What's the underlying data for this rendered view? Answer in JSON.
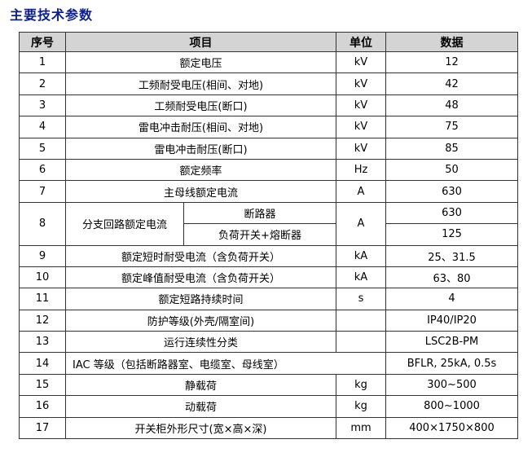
{
  "title": "主要技术参数",
  "headers": {
    "no": "序号",
    "item": "项目",
    "unit": "单位",
    "value": "数据"
  },
  "rows": [
    {
      "no": "1",
      "item": "额定电压",
      "unit": "kV",
      "value": "12"
    },
    {
      "no": "2",
      "item": "工频耐受电压(相间、对地)",
      "unit": "kV",
      "value": "42"
    },
    {
      "no": "3",
      "item": "工频耐受电压(断口)",
      "unit": "kV",
      "value": "48"
    },
    {
      "no": "4",
      "item": "雷电冲击耐压(相间、对地)",
      "unit": "kV",
      "value": "75"
    },
    {
      "no": "5",
      "item": "雷电冲击耐压(断口)",
      "unit": "kV",
      "value": "85"
    },
    {
      "no": "6",
      "item": "额定频率",
      "unit": "Hz",
      "value": "50"
    },
    {
      "no": "7",
      "item": "主母线额定电流",
      "unit": "A",
      "value": "630"
    }
  ],
  "row8": {
    "no": "8",
    "item": "分支回路额定电流",
    "sub1": "断路器",
    "sub2": "负荷开关+熔断器",
    "unit": "A",
    "value1": "630",
    "value2": "125"
  },
  "rows2": [
    {
      "no": "9",
      "item": "额定短时耐受电流（含负荷开关）",
      "unit": "kA",
      "value": "25、31.5"
    },
    {
      "no": "10",
      "item": "额定峰值耐受电流（含负荷开关）",
      "unit": "kA",
      "value": "63、80"
    },
    {
      "no": "11",
      "item": "额定短路持续时间",
      "unit": "s",
      "value": "4"
    },
    {
      "no": "12",
      "item": "防护等级(外壳/隔室间)",
      "unit": "",
      "value": "IP40/IP20"
    },
    {
      "no": "13",
      "item": "运行连续性分类",
      "unit": "",
      "value": "LSC2B-PM"
    },
    {
      "no": "14",
      "item": "IAC 等级（包括断路器室、电缆室、母线室）",
      "unit": "",
      "value": "BFLR, 25kA, 0.5s"
    },
    {
      "no": "15",
      "item": "静载荷",
      "unit": "kg",
      "value": "300~500"
    },
    {
      "no": "16",
      "item": "动载荷",
      "unit": "kg",
      "value": "800~1000"
    },
    {
      "no": "17",
      "item": "开关柜外形尺寸(宽×高×深)",
      "unit": "mm",
      "value": "400×1750×800"
    }
  ]
}
